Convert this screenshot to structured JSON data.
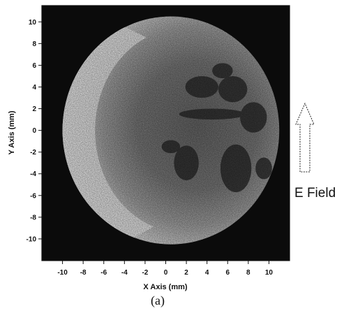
{
  "chart_data": {
    "type": "heatmap",
    "title": "",
    "xlabel": "X Axis (mm)",
    "ylabel": "Y Axis (mm)",
    "xlim": [
      -12,
      12
    ],
    "ylim": [
      -12,
      11.5
    ],
    "x_ticks": [
      -10,
      -8,
      -6,
      -4,
      -2,
      0,
      2,
      4,
      6,
      8,
      10
    ],
    "y_ticks": [
      10,
      8,
      6,
      4,
      2,
      0,
      -2,
      -4,
      -6,
      -8,
      -10
    ],
    "x_tick_labels": [
      "-10",
      "-8",
      "-6",
      "-4",
      "-2",
      "0",
      "2",
      "4",
      "6",
      "8",
      "10"
    ],
    "y_tick_labels": [
      "10",
      "8",
      "6",
      "4",
      "2",
      "0",
      "-2",
      "-4",
      "-6",
      "-8",
      "-10"
    ],
    "background_color": "#0b0b0b",
    "colormap": "grayscale",
    "grid": false,
    "spot": {
      "center": [
        0.5,
        0
      ],
      "radius": 10.5,
      "bright_rim_side": "left",
      "dark_region_side": "right"
    },
    "annotations": [
      {
        "text": "E Field",
        "arrow_direction": "up"
      }
    ],
    "panel_label": "(a)"
  }
}
